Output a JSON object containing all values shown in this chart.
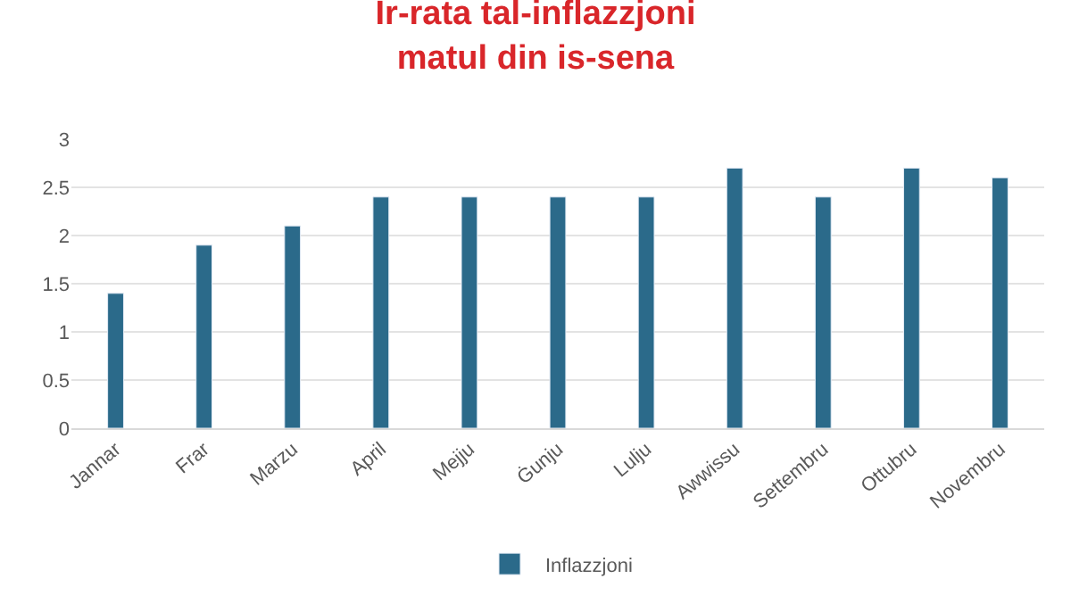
{
  "chart_data": {
    "type": "bar",
    "title": "Ir-rata tal-inflazzjoni\nmatul din is-sena",
    "categories": [
      "Jannar",
      "Frar",
      "Marzu",
      "April",
      "Mejju",
      "Ġunju",
      "Lulju",
      "Awwissu",
      "Settembru",
      "Ottubru",
      "Novembru"
    ],
    "series": [
      {
        "name": "Inflazzjoni",
        "color": "#2b6a8a",
        "values": [
          1.4,
          1.9,
          2.1,
          2.4,
          2.4,
          2.4,
          2.4,
          2.7,
          2.4,
          2.7,
          2.6
        ]
      }
    ],
    "ylim": [
      0,
      3
    ],
    "yticks": [
      0,
      {
        "value": 0.5,
        "label": "0.5"
      },
      1,
      {
        "value": 1.5,
        "label": "1.5"
      },
      2,
      {
        "value": 2.5,
        "label": "2.5"
      },
      3
    ],
    "grid": "y",
    "legend": "bottom"
  }
}
